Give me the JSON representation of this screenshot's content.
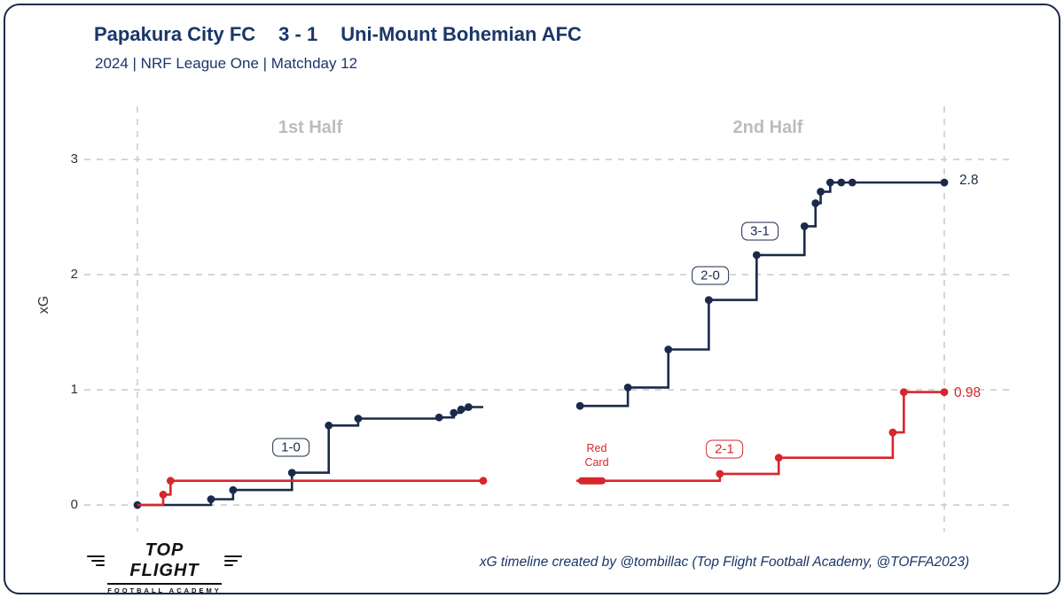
{
  "header": {
    "home_team": "Papakura City FC",
    "score": "3 - 1",
    "away_team": "Uni-Mount Bohemian AFC",
    "subtitle": "2024 | NRF League One | Matchday 12"
  },
  "footer": {
    "credit": "xG timeline created by @tombillac (Top Flight Football Academy, @TOFFA2023)",
    "logo": {
      "line1": "TOP FLIGHT",
      "line2": "FOOTBALL ACADEMY"
    }
  },
  "chart_data": {
    "type": "line",
    "subtype": "step",
    "title": "xG timeline",
    "xlabel": "",
    "ylabel": "xG",
    "ylim": [
      0,
      3
    ],
    "yticks": [
      "0",
      "1",
      "2",
      "3"
    ],
    "grid": true,
    "legend_position": "none",
    "halves": [
      {
        "label": "1st Half"
      },
      {
        "label": "2nd Half"
      }
    ],
    "colors": {
      "navy": "#1b2a4a",
      "red": "#d7262c",
      "grid": "#c9c9c9"
    },
    "series": [
      {
        "name": "Papakura City FC",
        "color_key": "navy",
        "final_xg": 2.8,
        "final_label": "2.8",
        "halves": [
          {
            "half": 1,
            "end_t": 47,
            "events": [
              [
                0,
                0
              ],
              [
                10,
                0.05
              ],
              [
                13,
                0.13
              ],
              [
                21,
                0.28
              ],
              [
                26,
                0.69
              ],
              [
                30,
                0.75
              ],
              [
                41,
                0.76
              ],
              [
                43,
                0.8
              ],
              [
                44,
                0.83
              ],
              [
                45,
                0.85
              ]
            ]
          },
          {
            "half": 2,
            "end_t": 95,
            "end_marker": true,
            "events": [
              [
                45.5,
                0.86
              ],
              [
                52,
                1.02
              ],
              [
                57.5,
                1.35
              ],
              [
                63,
                1.78
              ],
              [
                69.5,
                2.17
              ],
              [
                76,
                2.42
              ],
              [
                77.5,
                2.62
              ],
              [
                78.2,
                2.72
              ],
              [
                79.5,
                2.8
              ],
              [
                81,
                2.8
              ],
              [
                82.5,
                2.8
              ]
            ]
          }
        ]
      },
      {
        "name": "Uni-Mount Bohemian AFC",
        "color_key": "red",
        "final_xg": 0.98,
        "final_label": "0.98",
        "halves": [
          {
            "half": 1,
            "end_t": 47,
            "end_marker": true,
            "start": [
              0,
              0
            ],
            "events": [
              [
                3.5,
                0.09
              ],
              [
                4.5,
                0.21
              ]
            ]
          },
          {
            "half": 2,
            "end_t": 95,
            "end_marker": true,
            "start": [
              45,
              0.21
            ],
            "events": [
              [
                64.5,
                0.27
              ],
              [
                72.5,
                0.41
              ],
              [
                88,
                0.63
              ],
              [
                89.5,
                0.98
              ]
            ]
          }
        ]
      }
    ],
    "annotations": [
      {
        "text": "1-0",
        "team": "home"
      },
      {
        "text": "2-0",
        "team": "home"
      },
      {
        "text": "3-1",
        "team": "home"
      },
      {
        "text": "2-1",
        "team": "away"
      }
    ],
    "red_card": {
      "label": "Red Card",
      "half": 2,
      "t0": 45.7,
      "t1": 48.5,
      "v": 0.21
    }
  }
}
